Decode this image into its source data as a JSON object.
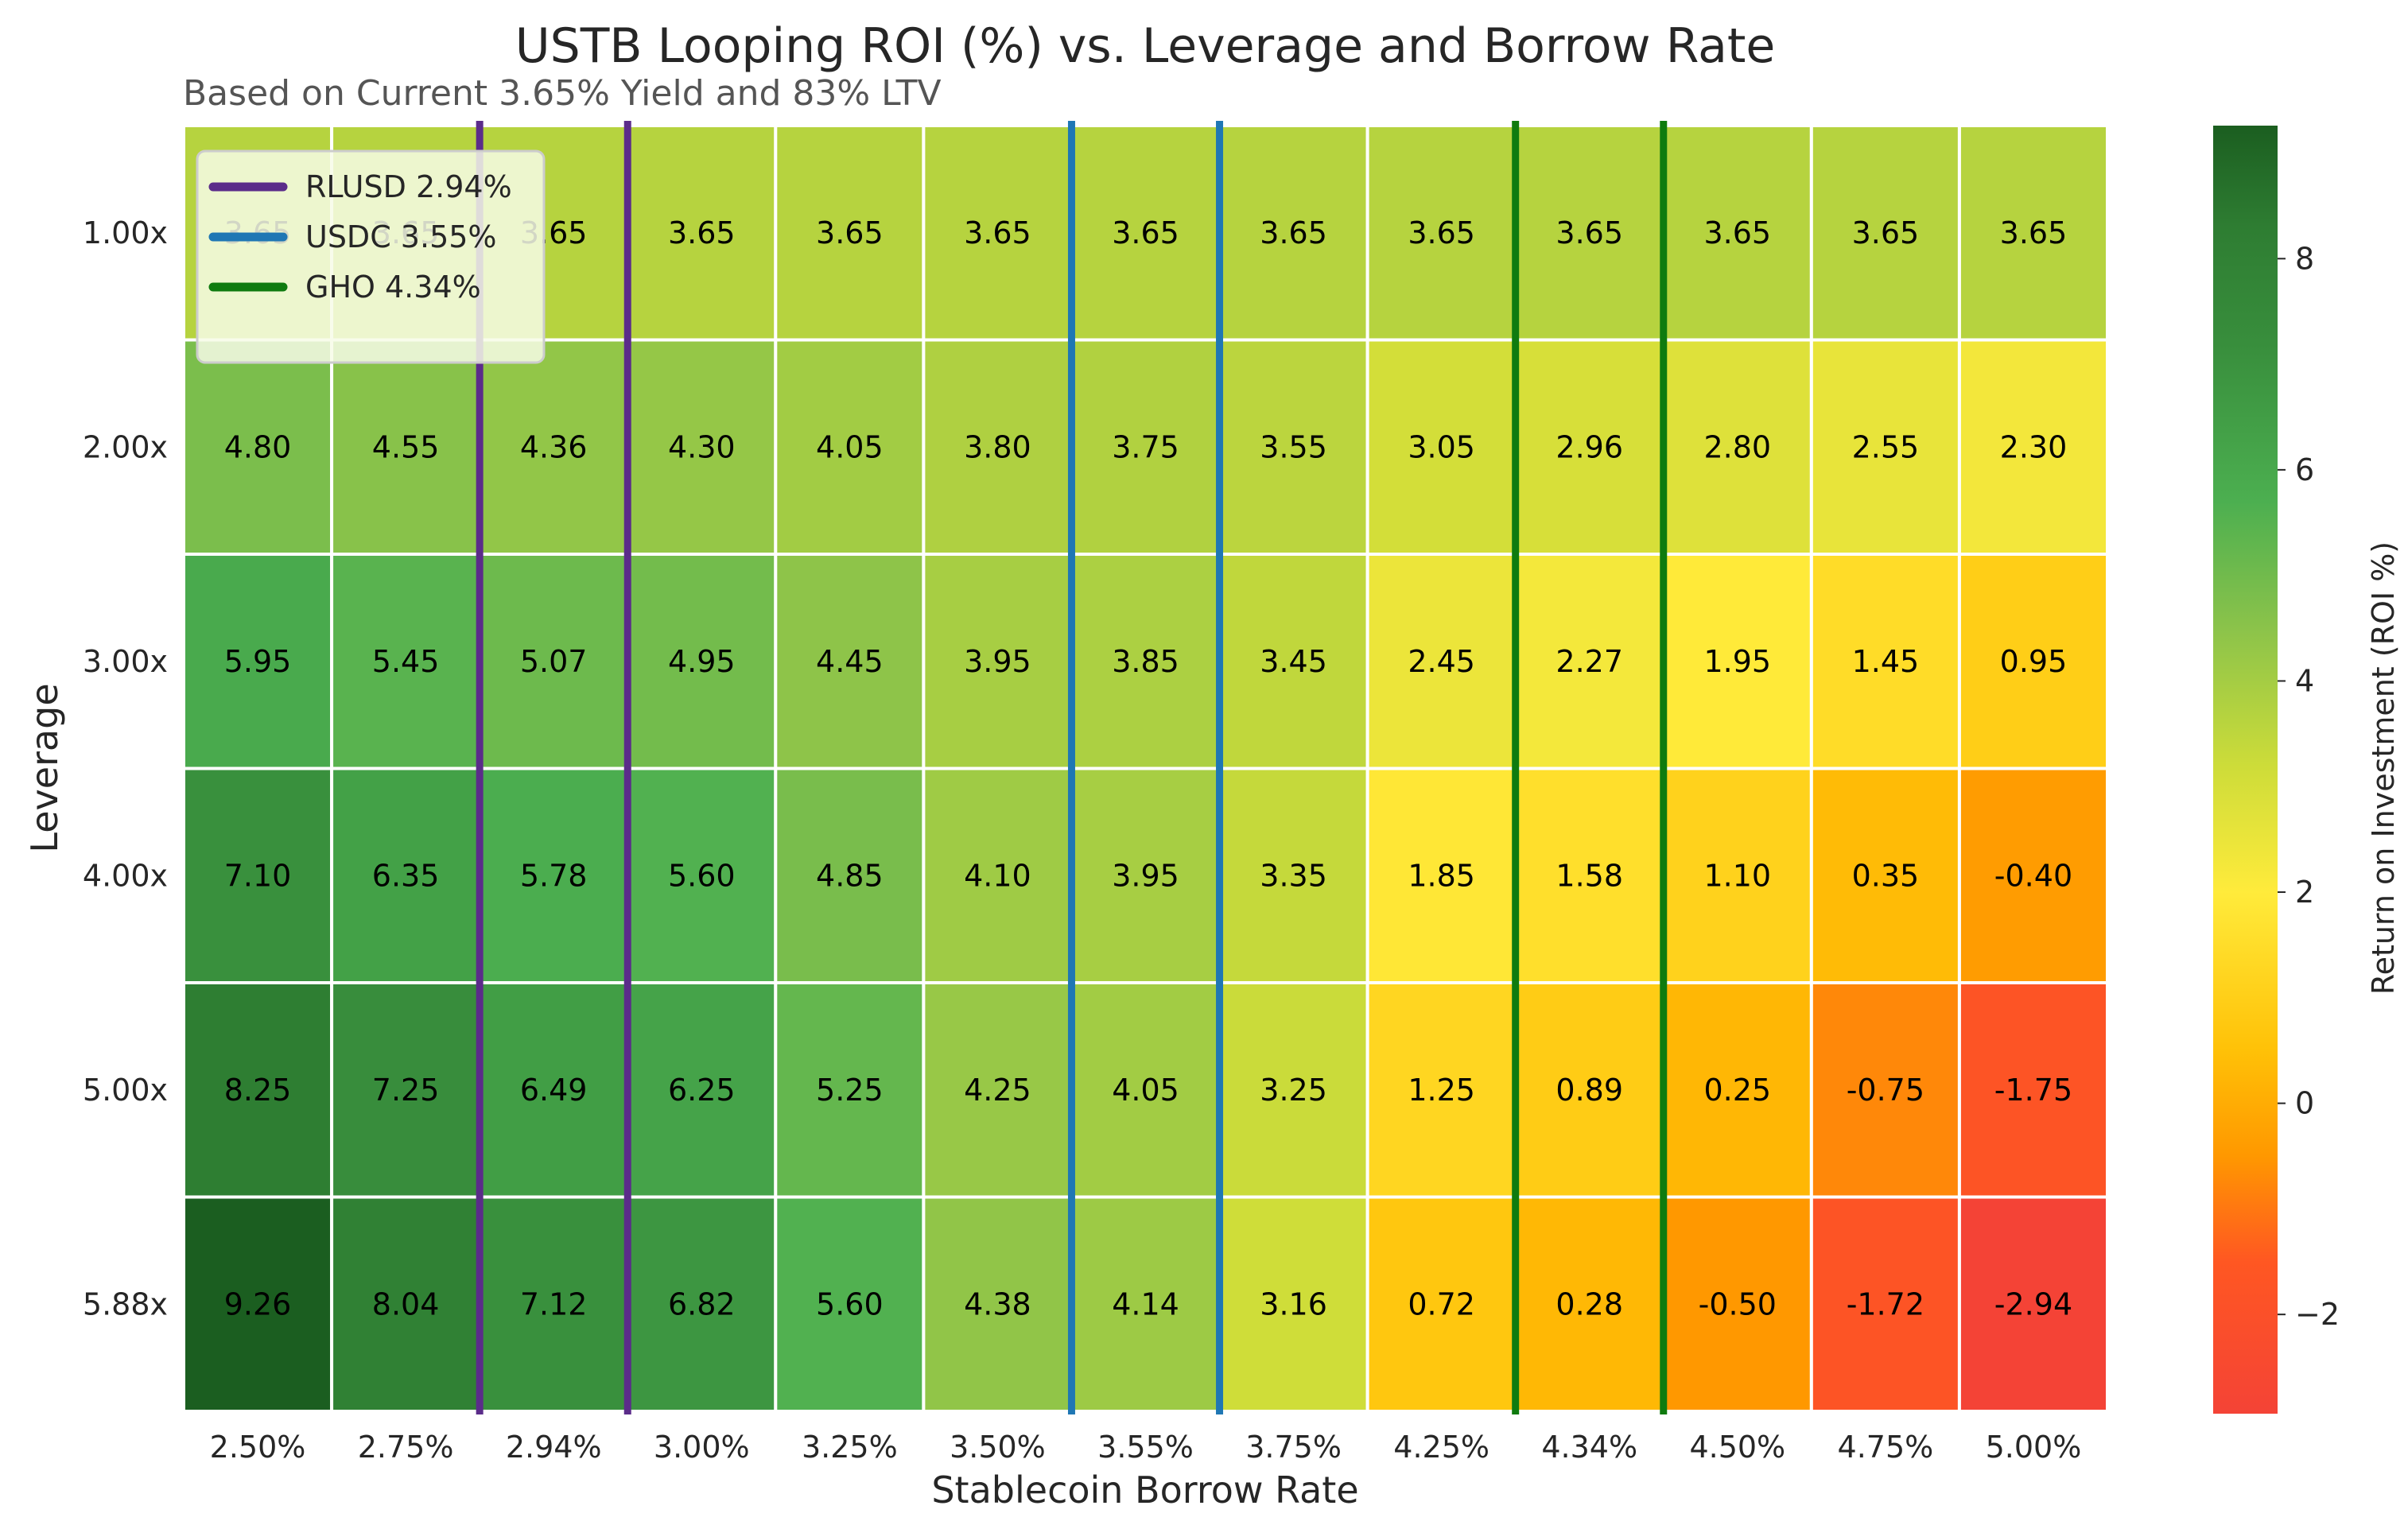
{
  "chart_data": {
    "type": "heatmap",
    "title": "USTB Looping ROI (%) vs. Leverage and Borrow Rate",
    "subtitle": "Based on Current 3.65% Yield and 83% LTV",
    "xlabel": "Stablecoin Borrow Rate",
    "ylabel": "Leverage",
    "x_categories": [
      "2.50%",
      "2.75%",
      "2.94%",
      "3.00%",
      "3.25%",
      "3.50%",
      "3.55%",
      "3.75%",
      "4.25%",
      "4.34%",
      "4.50%",
      "4.75%",
      "5.00%"
    ],
    "y_categories": [
      "1.00x",
      "2.00x",
      "3.00x",
      "4.00x",
      "5.00x",
      "5.88x"
    ],
    "values": [
      [
        3.65,
        3.65,
        3.65,
        3.65,
        3.65,
        3.65,
        3.65,
        3.65,
        3.65,
        3.65,
        3.65,
        3.65,
        3.65
      ],
      [
        4.8,
        4.55,
        4.36,
        4.3,
        4.05,
        3.8,
        3.75,
        3.55,
        3.05,
        2.96,
        2.8,
        2.55,
        2.3
      ],
      [
        5.95,
        5.45,
        5.07,
        4.95,
        4.45,
        3.95,
        3.85,
        3.45,
        2.45,
        2.27,
        1.95,
        1.45,
        0.95
      ],
      [
        7.1,
        6.35,
        5.78,
        5.6,
        4.85,
        4.1,
        3.95,
        3.35,
        1.85,
        1.58,
        1.1,
        0.35,
        -0.4
      ],
      [
        8.25,
        7.25,
        6.49,
        6.25,
        5.25,
        4.25,
        4.05,
        3.25,
        1.25,
        0.89,
        0.25,
        -0.75,
        -1.75
      ],
      [
        9.26,
        8.04,
        7.12,
        6.82,
        5.6,
        4.38,
        4.14,
        3.16,
        0.72,
        0.28,
        -0.5,
        -1.72,
        -2.94
      ]
    ],
    "value_format": "2 decimals",
    "colorbar": {
      "label": "Return on Investment (ROI %)",
      "range": [
        -2.94,
        9.26
      ],
      "ticks": [
        -2,
        0,
        2,
        4,
        6,
        8
      ],
      "colormap_stops": [
        {
          "value": -2.94,
          "color": "#f44336"
        },
        {
          "value": -1.5,
          "color": "#ff5722"
        },
        {
          "value": -0.5,
          "color": "#ff9800"
        },
        {
          "value": 0.5,
          "color": "#ffc107"
        },
        {
          "value": 2.0,
          "color": "#ffeb3b"
        },
        {
          "value": 3.2,
          "color": "#cddc39"
        },
        {
          "value": 4.5,
          "color": "#8bc34a"
        },
        {
          "value": 5.7,
          "color": "#4caf50"
        },
        {
          "value": 7.2,
          "color": "#388e3c"
        },
        {
          "value": 8.3,
          "color": "#2e7d32"
        },
        {
          "value": 9.26,
          "color": "#1b5e20"
        }
      ]
    },
    "reference_lines": [
      {
        "name": "RLUSD 2.94%",
        "category": "2.94%",
        "color": "#5b2c8a"
      },
      {
        "name": "USDC 3.55%",
        "category": "3.55%",
        "color": "#1f77b4"
      },
      {
        "name": "GHO 4.34%",
        "category": "4.34%",
        "color": "#0f7b0f"
      }
    ],
    "legend": {
      "placement": "top-left",
      "entries": [
        "RLUSD 2.94%",
        "USDC 3.55%",
        "GHO 4.34%"
      ]
    },
    "grid": false
  }
}
